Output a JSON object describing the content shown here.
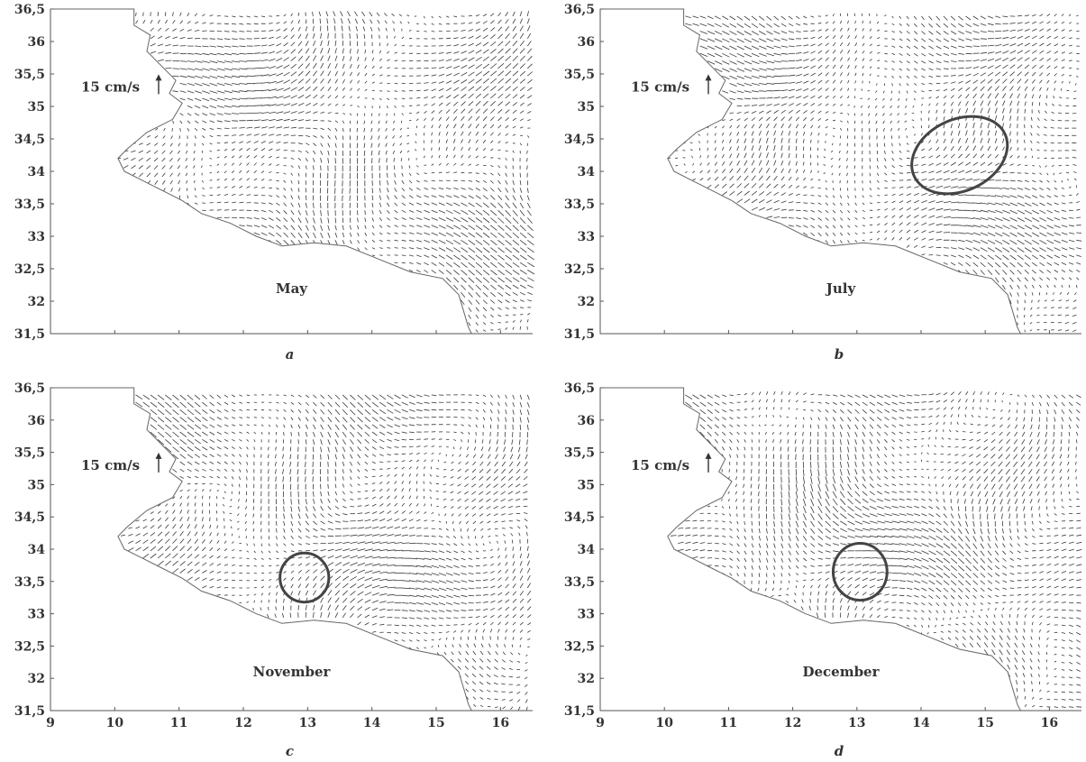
{
  "chart_data": [
    {
      "panel": "a",
      "type": "vector_field",
      "title": "May",
      "xlim": [
        9,
        16.5
      ],
      "ylim": [
        31.5,
        36.5
      ],
      "x_ticks": [
        "9",
        "10",
        "11",
        "12",
        "13",
        "14",
        "15",
        "16"
      ],
      "y_ticks": [
        "31,5",
        "32",
        "32,5",
        "33",
        "33,5",
        "34",
        "34,5",
        "35",
        "35,5",
        "36",
        "36,5"
      ],
      "show_x_tick_labels": false,
      "scale_label": "15 cm/s",
      "eddy_markers": []
    },
    {
      "panel": "b",
      "type": "vector_field",
      "title": "July",
      "xlim": [
        9,
        16.5
      ],
      "ylim": [
        31.5,
        36.5
      ],
      "x_ticks": [
        "9",
        "10",
        "11",
        "12",
        "13",
        "14",
        "15",
        "16"
      ],
      "y_ticks": [
        "31,5",
        "32",
        "32,5",
        "33",
        "33,5",
        "34",
        "34,5",
        "35",
        "35,5",
        "36",
        "36,5"
      ],
      "show_x_tick_labels": false,
      "scale_label": "15 cm/s",
      "eddy_markers": [
        {
          "cx": 14.6,
          "cy": 34.25,
          "rx": 0.78,
          "ry": 0.55,
          "angle": -25
        }
      ]
    },
    {
      "panel": "c",
      "type": "vector_field",
      "title": "November",
      "xlim": [
        9,
        16.5
      ],
      "ylim": [
        31.5,
        36.5
      ],
      "x_ticks": [
        "9",
        "10",
        "11",
        "12",
        "13",
        "14",
        "15",
        "16"
      ],
      "y_ticks": [
        "31,5",
        "32",
        "32,5",
        "33",
        "33,5",
        "34",
        "34,5",
        "35",
        "35,5",
        "36",
        "36,5"
      ],
      "show_x_tick_labels": true,
      "scale_label": "15 cm/s",
      "eddy_markers": [
        {
          "cx": 12.95,
          "cy": 33.56,
          "rx": 0.38,
          "ry": 0.38,
          "angle": 0
        }
      ]
    },
    {
      "panel": "d",
      "type": "vector_field",
      "title": "December",
      "xlim": [
        9,
        16.5
      ],
      "ylim": [
        31.5,
        36.5
      ],
      "x_ticks": [
        "9",
        "10",
        "11",
        "12",
        "13",
        "14",
        "15",
        "16"
      ],
      "y_ticks": [
        "31,5",
        "32",
        "32,5",
        "33",
        "33,5",
        "34",
        "34,5",
        "35",
        "35,5",
        "36",
        "36,5"
      ],
      "show_x_tick_labels": true,
      "scale_label": "15 cm/s",
      "eddy_markers": [
        {
          "cx": 13.05,
          "cy": 33.65,
          "rx": 0.42,
          "ry": 0.44,
          "angle": 0
        }
      ]
    }
  ],
  "coastline": {
    "land_lon_lat": [
      [
        9,
        36.5
      ],
      [
        10.3,
        36.5
      ],
      [
        10.3,
        36.25
      ],
      [
        10.55,
        36.1
      ],
      [
        10.5,
        35.85
      ],
      [
        10.75,
        35.6
      ],
      [
        10.95,
        35.4
      ],
      [
        10.85,
        35.2
      ],
      [
        11.05,
        35.05
      ],
      [
        10.9,
        34.8
      ],
      [
        10.5,
        34.6
      ],
      [
        10.2,
        34.35
      ],
      [
        10.05,
        34.2
      ],
      [
        10.15,
        34.0
      ],
      [
        10.45,
        33.85
      ],
      [
        10.75,
        33.7
      ],
      [
        11.05,
        33.55
      ],
      [
        11.35,
        33.35
      ],
      [
        11.8,
        33.2
      ],
      [
        12.2,
        33.0
      ],
      [
        12.6,
        32.85
      ],
      [
        13.1,
        32.9
      ],
      [
        13.6,
        32.85
      ],
      [
        14.1,
        32.65
      ],
      [
        14.6,
        32.45
      ],
      [
        15.1,
        32.35
      ],
      [
        15.35,
        32.1
      ],
      [
        15.5,
        31.6
      ],
      [
        15.55,
        31.5
      ],
      [
        9,
        31.5
      ]
    ],
    "colors": {
      "ink": "#333333",
      "axis": "#555555",
      "eddy": "#444444",
      "arrow": "#3a3a3a",
      "coast": "#666666"
    }
  }
}
